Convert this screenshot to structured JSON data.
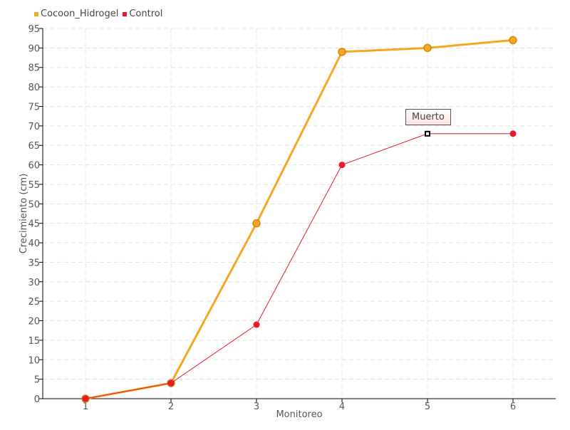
{
  "chart_data": {
    "type": "line",
    "xlabel": "Monitoreo",
    "ylabel": "Crecimiento (cm)",
    "categories": [
      "1",
      "2",
      "3",
      "4",
      "5",
      "6"
    ],
    "ylim": [
      0,
      95
    ],
    "yticks": [
      0,
      5,
      10,
      15,
      20,
      25,
      30,
      35,
      40,
      45,
      50,
      55,
      60,
      65,
      70,
      75,
      80,
      85,
      90,
      95
    ],
    "grid": true,
    "legend_position": "top-left",
    "series": [
      {
        "name": "Cocoon_Hidrogel",
        "color": "#f5a623",
        "values": [
          0,
          4,
          45,
          89,
          90,
          92
        ]
      },
      {
        "name": "Control",
        "color": "#e8192c",
        "values": [
          0,
          4,
          19,
          60,
          68,
          68
        ]
      }
    ],
    "annotations": [
      {
        "series": "Control",
        "category": "5",
        "text": "Muerto"
      }
    ]
  }
}
